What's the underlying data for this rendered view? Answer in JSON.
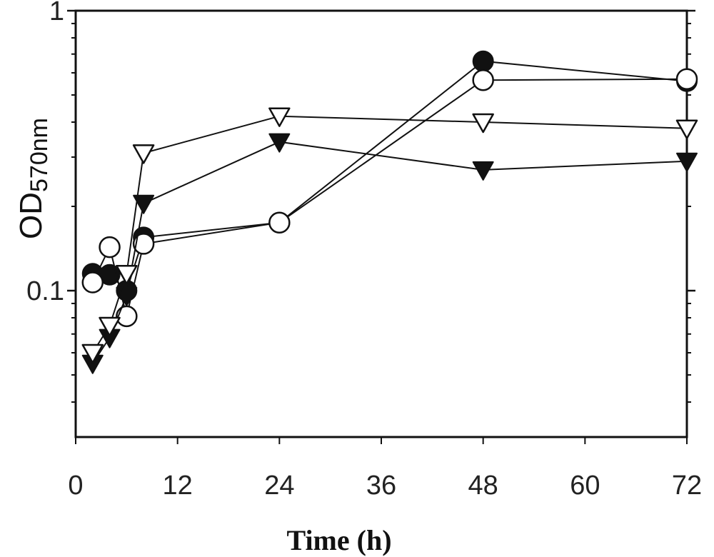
{
  "chart_data": {
    "type": "line",
    "title": "",
    "xlabel": "Time (h)",
    "ylabel": "OD",
    "ylabel_subscript": "570nm",
    "x_scale": "linear",
    "y_scale": "log",
    "xlim": [
      0,
      72
    ],
    "ylim": [
      0.03,
      1
    ],
    "x_ticks": [
      0,
      12,
      24,
      36,
      48,
      60,
      72
    ],
    "x_tick_labels": [
      "0",
      "12",
      "24",
      "36",
      "48",
      "60",
      "72"
    ],
    "y_major_ticks": [
      0.1,
      1
    ],
    "y_tick_labels": [
      "0.1",
      "1"
    ],
    "y_minor_ticks": [
      0.04,
      0.05,
      0.06,
      0.07,
      0.08,
      0.09,
      0.2,
      0.3,
      0.4,
      0.5,
      0.6,
      0.7,
      0.8,
      0.9
    ],
    "grid": false,
    "legend": "none",
    "series": [
      {
        "marker": "circle-filled",
        "x": [
          2,
          4,
          6,
          8,
          24,
          48,
          72
        ],
        "y": [
          0.115,
          0.114,
          0.1,
          0.155,
          0.175,
          0.66,
          0.56
        ]
      },
      {
        "marker": "circle-open",
        "x": [
          2,
          4,
          6,
          8,
          24,
          48,
          72
        ],
        "y": [
          0.107,
          0.143,
          0.081,
          0.147,
          0.175,
          0.565,
          0.57
        ]
      },
      {
        "marker": "triangle-down-filled",
        "x": [
          2,
          4,
          6,
          8,
          24,
          48,
          72
        ],
        "y": [
          0.055,
          0.068,
          0.096,
          0.205,
          0.34,
          0.27,
          0.29
        ]
      },
      {
        "marker": "triangle-down-open",
        "x": [
          2,
          4,
          6,
          8,
          24,
          48,
          72
        ],
        "y": [
          0.06,
          0.075,
          0.115,
          0.31,
          0.42,
          0.4,
          0.38
        ]
      }
    ]
  }
}
